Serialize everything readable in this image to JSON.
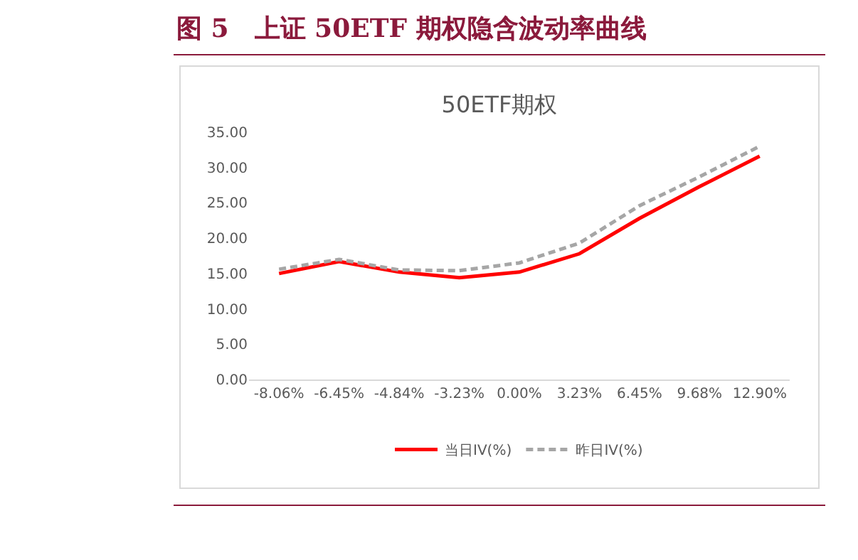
{
  "chart_data": {
    "type": "line",
    "title": "图 5　上证 50ETF 期权隐含波动率曲线",
    "subtitle": "50ETF期权",
    "categories": [
      "-8.06%",
      "-6.45%",
      "-4.84%",
      "-3.23%",
      "0.00%",
      "3.23%",
      "6.45%",
      "9.68%",
      "12.90%"
    ],
    "series": [
      {
        "name": "当日IV(%)",
        "color": "#ff0000",
        "line_style": "solid",
        "values": [
          15.0,
          16.7,
          15.2,
          14.4,
          15.2,
          17.8,
          22.8,
          27.3,
          31.6
        ]
      },
      {
        "name": "昨日IV(%)",
        "color": "#a6a6a6",
        "line_style": "dashed",
        "values": [
          15.6,
          17.0,
          15.5,
          15.4,
          16.5,
          19.3,
          24.6,
          28.7,
          33.0
        ]
      }
    ],
    "ylim": [
      0,
      35
    ],
    "yticks": [
      {
        "value": 0,
        "label": "0.00"
      },
      {
        "value": 5,
        "label": "5.00"
      },
      {
        "value": 10,
        "label": "10.00"
      },
      {
        "value": 15,
        "label": "15.00"
      },
      {
        "value": 20,
        "label": "20.00"
      },
      {
        "value": 25,
        "label": "25.00"
      },
      {
        "value": 30,
        "label": "30.00"
      },
      {
        "value": 35,
        "label": "35.00"
      }
    ],
    "grid": false,
    "legend": "bottom",
    "marker": "none"
  }
}
